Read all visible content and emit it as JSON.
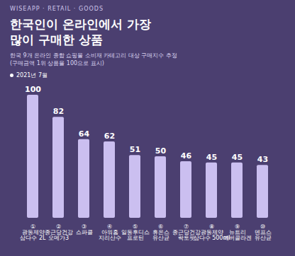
{
  "chart_data": {
    "type": "bar",
    "header": "WISEAPP · RETAIL · GOODS",
    "title": "한국인이 온라인에서 가장\n많이 구매한 상품",
    "subtitle": "한국 9개 온라인 종합 쇼핑몰 소비재 카테고리 대상 구매지수 추정\n(구매금액 1위 상품을 100으로 표시)",
    "period": "2021년 7월",
    "categories": [
      "①\n광동제약\n삼다수 2L",
      "②\n종근당건강\n오메가3",
      "③\n스파클",
      "④\n아워홈\n지리산수",
      "⑤\n일동후디스\n프로틴",
      "⑥\n휴온스\n유산균",
      "⑦\n종근당건강\n락토핏",
      "⑧\n광동제약\n삼다수 500ml",
      "⑨\n뉴트리\n에버콜라겐",
      "⑩\n덴프스\n유산균"
    ],
    "values": [
      100,
      82,
      64,
      62,
      51,
      50,
      46,
      45,
      45,
      43
    ],
    "color": "#cbbff0",
    "ylim": [
      0,
      100
    ],
    "data_labels": true,
    "tick_labels": "x",
    "grid": false
  }
}
